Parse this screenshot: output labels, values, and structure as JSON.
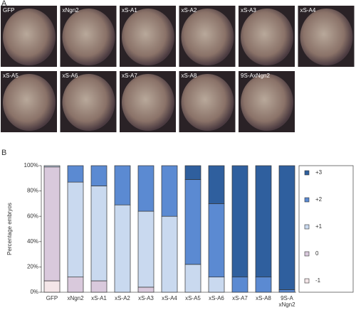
{
  "panel_a": {
    "label": "A",
    "images": [
      "GFP",
      "xNgn2",
      "xS-A1",
      "xS-A2",
      "xS-A3",
      "xS-A4",
      "xS-A5",
      "xS-A6",
      "xS-A7",
      "xS-A8",
      "9S-AxNgn2"
    ]
  },
  "chart_data": {
    "type": "stacked_bar",
    "panel_label": "B",
    "y_label": "Percentage embryos",
    "categories": [
      "GFP",
      "xNgn2",
      "xS-A1",
      "xS-A2",
      "xS-A3",
      "xS-A4",
      "xS-A5",
      "xS-A6",
      "xS-A7",
      "xS-A8",
      "9S-A xNgn2"
    ],
    "series": [
      {
        "name": "-1",
        "color": "#f4e6e8",
        "values": [
          9,
          0,
          0,
          0,
          0,
          0,
          0,
          0,
          0,
          0,
          0
        ]
      },
      {
        "name": "0",
        "color": "#d9c9dc",
        "values": [
          90,
          12,
          9,
          0,
          4,
          0,
          0,
          0,
          0,
          0,
          0
        ]
      },
      {
        "name": "+1",
        "color": "#c9d9ef",
        "values": [
          1,
          75,
          75,
          69,
          60,
          60,
          22,
          12,
          0,
          0,
          0
        ]
      },
      {
        "name": "+2",
        "color": "#5b8ad2",
        "values": [
          0,
          13,
          16,
          31,
          36,
          40,
          67,
          58,
          12,
          12,
          2
        ]
      },
      {
        "name": "+3",
        "color": "#2f5f9e",
        "values": [
          0,
          0,
          0,
          0,
          0,
          0,
          11,
          30,
          88,
          88,
          98
        ]
      }
    ],
    "ylim": [
      0,
      100
    ],
    "yticks": [
      {
        "value": 0,
        "label": "0%"
      },
      {
        "value": 20,
        "label": "20%"
      },
      {
        "value": 40,
        "label": "40%"
      },
      {
        "value": 60,
        "label": "60%"
      },
      {
        "value": 80,
        "label": "80%"
      },
      {
        "value": 100,
        "label": "100%"
      }
    ]
  }
}
